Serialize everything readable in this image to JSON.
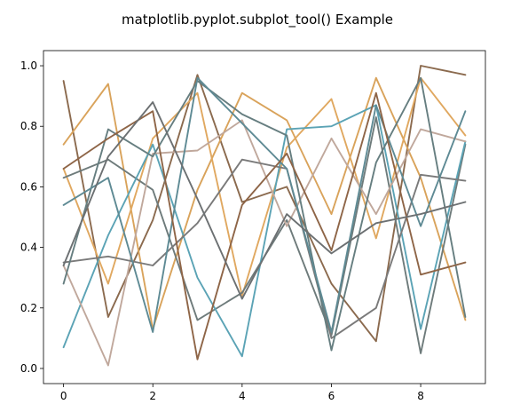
{
  "chart_data": {
    "type": "line",
    "title": "matplotlib.pyplot.subplot_tool() Example",
    "xlabel": "",
    "ylabel": "",
    "xlim": [
      -0.45,
      9.45
    ],
    "ylim": [
      -0.05,
      1.05
    ],
    "x_ticks": [
      0,
      2,
      4,
      6,
      8
    ],
    "y_ticks": [
      0.0,
      0.2,
      0.4,
      0.6,
      0.8,
      1.0
    ],
    "x_tick_labels": [
      "0",
      "2",
      "4",
      "6",
      "8"
    ],
    "y_tick_labels": [
      "0.0",
      "0.2",
      "0.4",
      "0.6",
      "0.8",
      "1.0"
    ],
    "grid": false,
    "x": [
      0,
      1,
      2,
      3,
      4,
      5,
      6,
      7,
      8,
      9
    ],
    "series": [
      {
        "color": "#8B6A4E",
        "values": [
          0.95,
          0.17,
          0.49,
          0.97,
          0.55,
          0.6,
          0.28,
          0.09,
          1.0,
          0.97
        ]
      },
      {
        "color": "#D9A35B",
        "values": [
          0.74,
          0.94,
          0.13,
          0.59,
          0.91,
          0.82,
          0.51,
          0.96,
          0.63,
          0.16
        ]
      },
      {
        "color": "#E0A860",
        "values": [
          0.66,
          0.28,
          0.76,
          0.91,
          0.24,
          0.73,
          0.89,
          0.43,
          0.96,
          0.77
        ]
      },
      {
        "color": "#6E7B7B",
        "values": [
          0.63,
          0.69,
          0.59,
          0.16,
          0.25,
          0.49,
          0.11,
          0.83,
          0.05,
          0.74
        ]
      },
      {
        "color": "#5BA3B5",
        "values": [
          0.07,
          0.44,
          0.74,
          0.3,
          0.04,
          0.79,
          0.8,
          0.87,
          0.13,
          0.75
        ]
      },
      {
        "color": "#C0A89C",
        "values": [
          0.34,
          0.01,
          0.71,
          0.72,
          0.82,
          0.47,
          0.76,
          0.51,
          0.79,
          0.75
        ]
      },
      {
        "color": "#7A7A7A",
        "values": [
          0.35,
          0.37,
          0.34,
          0.48,
          0.69,
          0.66,
          0.1,
          0.2,
          0.64,
          0.62
        ]
      },
      {
        "color": "#667E80",
        "values": [
          0.28,
          0.79,
          0.7,
          0.95,
          0.84,
          0.77,
          0.06,
          0.68,
          0.96,
          0.17
        ]
      },
      {
        "color": "#5E8A94",
        "values": [
          0.54,
          0.63,
          0.12,
          0.96,
          0.81,
          0.66,
          0.12,
          0.87,
          0.47,
          0.85
        ]
      },
      {
        "color": "#8E6547",
        "values": [
          0.66,
          0.76,
          0.85,
          0.03,
          0.54,
          0.71,
          0.39,
          0.91,
          0.31,
          0.35
        ]
      },
      {
        "color": "#6C7072",
        "values": [
          0.34,
          0.7,
          0.88,
          0.56,
          0.23,
          0.51,
          0.38,
          0.48,
          0.51,
          0.55
        ]
      }
    ]
  }
}
